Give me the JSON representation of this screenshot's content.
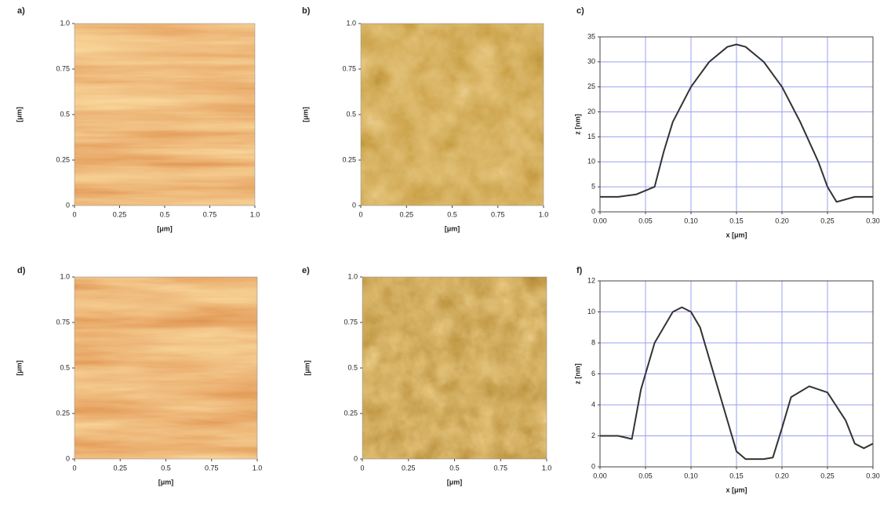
{
  "chart_data": [
    {
      "type": "image",
      "title": "a)",
      "xlabel": "[μm]",
      "ylabel": "[μm]",
      "xlim": [
        0,
        1
      ],
      "ylim": [
        0,
        1
      ],
      "xticks": [
        0,
        0.25,
        0.5,
        0.75,
        {
          "value": 1,
          "label": "1.0"
        }
      ],
      "yticks": [
        0,
        0.25,
        0.5,
        0.75,
        {
          "value": 1,
          "label": "1.0"
        }
      ],
      "colors": [
        "#5a1a02",
        "#c95a1c",
        "#f0a850",
        "#fff2c0"
      ]
    },
    {
      "type": "image",
      "title": "b)",
      "xlabel": "[μm]",
      "ylabel": "[μm]",
      "xlim": [
        0,
        1
      ],
      "ylim": [
        0,
        1
      ],
      "xticks": [
        0,
        0.25,
        0.5,
        0.75,
        {
          "value": 1,
          "label": "1.0"
        }
      ],
      "yticks": [
        0,
        0.25,
        0.5,
        0.75,
        {
          "value": 1,
          "label": "1.0"
        }
      ],
      "colors": [
        "#4a2a05",
        "#9a5e12",
        "#c48a30",
        "#f5dfa8"
      ]
    },
    {
      "type": "line",
      "title": "c)",
      "xlabel": "x [μm]",
      "ylabel": "z [nm]",
      "color": "#333333",
      "grid": true,
      "xlim": [
        0,
        0.3
      ],
      "ylim": [
        0,
        35
      ],
      "xticks": [
        {
          "value": 0,
          "label": "0.00"
        },
        {
          "value": 0.05,
          "label": "0.05"
        },
        {
          "value": 0.1,
          "label": "0.10"
        },
        {
          "value": 0.15,
          "label": "0.15"
        },
        {
          "value": 0.2,
          "label": "0.20"
        },
        {
          "value": 0.25,
          "label": "0.25"
        },
        {
          "value": 0.3,
          "label": "0.30"
        }
      ],
      "yticks": [
        0,
        5,
        10,
        15,
        20,
        25,
        30,
        35
      ],
      "x": [
        0,
        0.02,
        0.04,
        0.06,
        0.07,
        0.08,
        0.1,
        0.12,
        0.14,
        0.15,
        0.16,
        0.18,
        0.2,
        0.22,
        0.24,
        0.25,
        0.26,
        0.27,
        0.28,
        0.3
      ],
      "values": [
        3,
        3,
        3.5,
        5,
        12,
        18,
        25,
        30,
        33,
        33.5,
        33,
        30,
        25,
        18,
        10,
        5,
        2,
        2.5,
        3,
        3
      ]
    },
    {
      "type": "image",
      "title": "d)",
      "xlabel": "[μm]",
      "ylabel": "[μm]",
      "xlim": [
        0,
        1
      ],
      "ylim": [
        0,
        1
      ],
      "xticks": [
        0,
        0.25,
        0.5,
        0.75,
        {
          "value": 1,
          "label": "1.0"
        }
      ],
      "yticks": [
        0,
        0.25,
        0.5,
        0.75,
        {
          "value": 1,
          "label": "1.0"
        }
      ],
      "colors": [
        "#5a1a02",
        "#c95a1c",
        "#f0a850",
        "#fff2c0"
      ]
    },
    {
      "type": "image",
      "title": "e)",
      "xlabel": "[μm]",
      "ylabel": "[μm]",
      "xlim": [
        0,
        1
      ],
      "ylim": [
        0,
        1
      ],
      "xticks": [
        0,
        0.25,
        0.5,
        0.75,
        {
          "value": 1,
          "label": "1.0"
        }
      ],
      "yticks": [
        0,
        0.25,
        0.5,
        0.75,
        {
          "value": 1,
          "label": "1.0"
        }
      ],
      "colors": [
        "#3a1f03",
        "#8a5210",
        "#c48a30",
        "#fbecc8"
      ]
    },
    {
      "type": "line",
      "title": "f)",
      "xlabel": "x [μm]",
      "ylabel": "z [nm]",
      "color": "#333333",
      "grid": true,
      "xlim": [
        0,
        0.3
      ],
      "ylim": [
        0,
        12
      ],
      "xticks": [
        {
          "value": 0,
          "label": "0.00"
        },
        {
          "value": 0.05,
          "label": "0.05"
        },
        {
          "value": 0.1,
          "label": "0.10"
        },
        {
          "value": 0.15,
          "label": "0.15"
        },
        {
          "value": 0.2,
          "label": "0.20"
        },
        {
          "value": 0.25,
          "label": "0.25"
        },
        {
          "value": 0.3,
          "label": "0.30"
        }
      ],
      "yticks": [
        0,
        2,
        4,
        6,
        8,
        10,
        12
      ],
      "x": [
        0,
        0.02,
        0.035,
        0.045,
        0.06,
        0.08,
        0.09,
        0.1,
        0.11,
        0.13,
        0.15,
        0.16,
        0.18,
        0.19,
        0.2,
        0.21,
        0.23,
        0.25,
        0.27,
        0.28,
        0.29,
        0.3
      ],
      "values": [
        2,
        2,
        1.8,
        5,
        8,
        10,
        10.3,
        10,
        9,
        5,
        1,
        0.5,
        0.5,
        0.6,
        2.5,
        4.5,
        5.2,
        4.8,
        3,
        1.5,
        1.2,
        1.5
      ]
    }
  ]
}
